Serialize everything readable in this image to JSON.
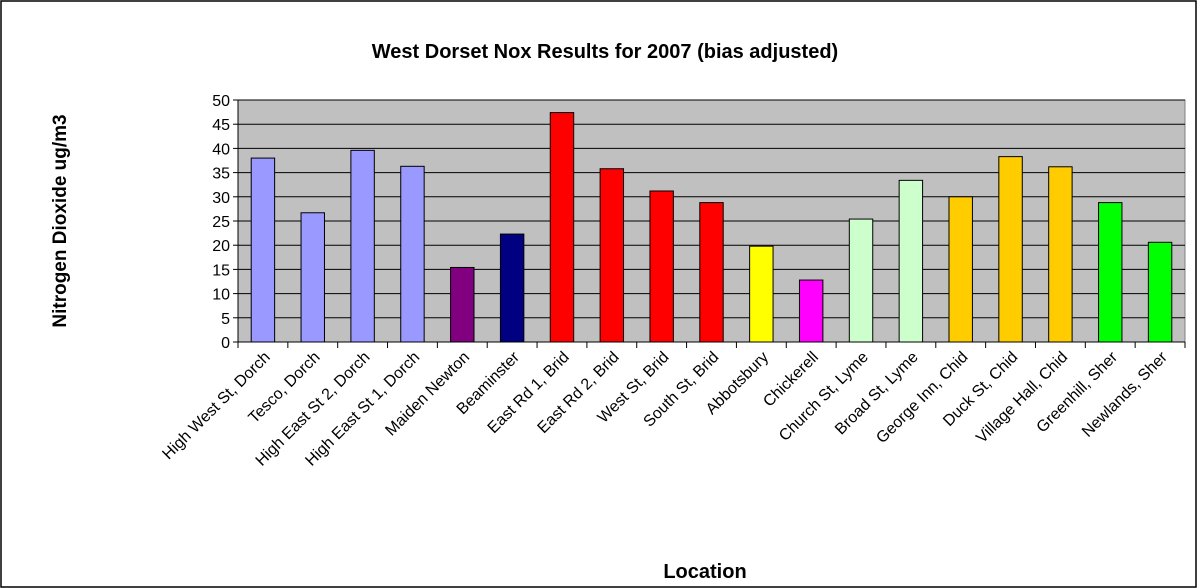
{
  "chart_data": {
    "type": "bar",
    "title": "West Dorset Nox Results for 2007 (bias adjusted)",
    "y_label": "Nitrogen Dioxide ug/m3",
    "x_label": "Location",
    "categories": [
      "High West St, Dorch",
      "Tesco, Dorch",
      "High East St 2, Dorch",
      "High East St 1, Dorch",
      "Maiden Newton",
      "Beaminster",
      "East Rd 1, Brid",
      "East Rd 2, Brid",
      "West St, Brid",
      "South St, Brid",
      "Abbotsbury",
      "Chickerell",
      "Church St, Lyme",
      "Broad St, Lyme",
      "George Inn, Chid",
      "Duck St, Chid",
      "Village Hall, Chid",
      "Greenhill, Sher",
      "Newlands, Sher"
    ],
    "values": [
      38,
      26.7,
      39.6,
      36.3,
      15.4,
      22.3,
      47.4,
      35.8,
      31.2,
      28.8,
      19.8,
      12.8,
      25.4,
      33.4,
      30,
      38.3,
      36.2,
      28.8,
      20.6
    ],
    "colors": [
      "#9999ff",
      "#9999ff",
      "#9999ff",
      "#9999ff",
      "#800080",
      "#000080",
      "#ff0000",
      "#ff0000",
      "#ff0000",
      "#ff0000",
      "#ffff00",
      "#ff00ff",
      "#ccffcc",
      "#ccffcc",
      "#ffcc00",
      "#ffcc00",
      "#ffcc00",
      "#00ff00",
      "#00ff00"
    ],
    "ylim": [
      0,
      50
    ],
    "yticks": [
      0,
      5,
      10,
      15,
      20,
      25,
      30,
      35,
      40,
      45,
      50
    ],
    "grid": true
  }
}
